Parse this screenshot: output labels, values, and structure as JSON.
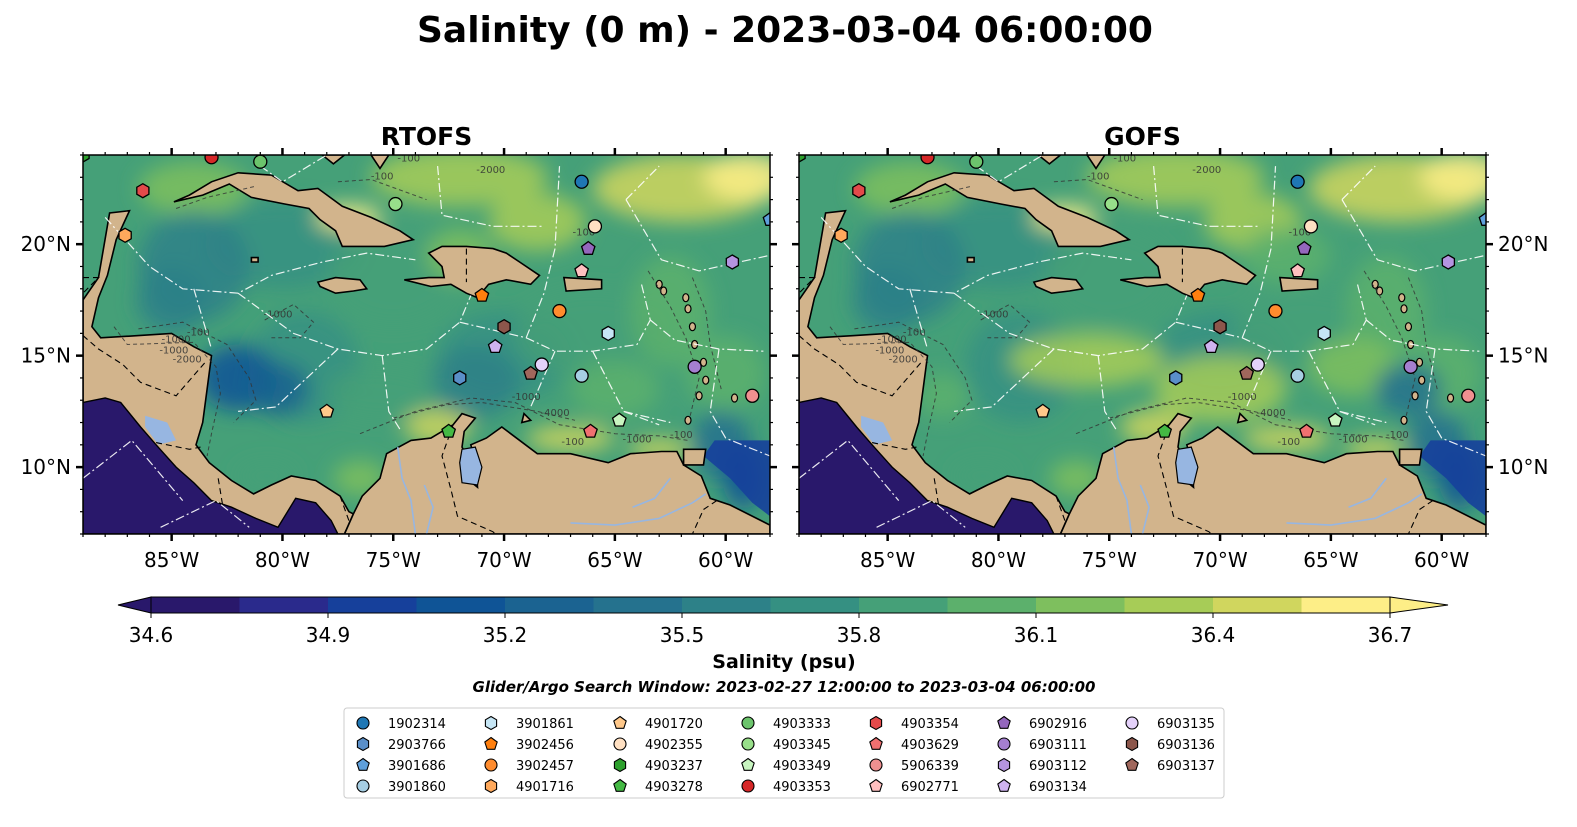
{
  "figure": {
    "title": "Salinity (0 m) - 2023-03-04 06:00:00",
    "search_window": "Glider/Argo Search Window: 2023-02-27 12:00:00 to 2023-03-04 06:00:00"
  },
  "colors": {
    "land": "#d2b48c",
    "lake": "#97b6e1",
    "marker_edge": "#000000"
  },
  "chart_data": {
    "type": "heatmap",
    "projection": "plate carree",
    "extent": {
      "lon": [
        -89,
        -58
      ],
      "lat": [
        7,
        24
      ]
    },
    "panels": [
      {
        "title": "RTOFS",
        "model": "RTOFS"
      },
      {
        "title": "GOFS",
        "model": "GOFS"
      }
    ],
    "x_ticks": [
      "85°W",
      "80°W",
      "75°W",
      "70°W",
      "65°W",
      "60°W"
    ],
    "x_tick_values": [
      -85,
      -80,
      -75,
      -70,
      -65,
      -60
    ],
    "y_ticks": [
      "10°N",
      "15°N",
      "20°N"
    ],
    "y_tick_values": [
      10,
      15,
      20
    ],
    "colorbar": {
      "label": "Salinity (psu)",
      "ticks": [
        "34.6",
        "34.9",
        "35.2",
        "35.5",
        "35.8",
        "36.1",
        "36.4",
        "36.7"
      ],
      "range": [
        34.6,
        36.7
      ],
      "extend": "both",
      "colormap": "haline",
      "colors": [
        "#29186b",
        "#2a2a8c",
        "#16409b",
        "#0f5496",
        "#1b6391",
        "#25728e",
        "#2d8188",
        "#359082",
        "#45a078",
        "#5cb06c",
        "#7ebf5e",
        "#a7cc57",
        "#d0d65e",
        "#fdee87"
      ]
    },
    "contour_labels": [
      "-100",
      "-1000",
      "-2000",
      "-4000",
      "-1000",
      "-1000",
      "-100",
      "-100",
      "-1000",
      "-100",
      "-2000",
      "-100",
      "-100",
      "-1000"
    ],
    "floats": [
      {
        "id": "1902314",
        "lon": -66.5,
        "lat": 22.8,
        "marker": "circle",
        "color": "#1f77b4"
      },
      {
        "id": "2903766",
        "lon": -72.0,
        "lat": 14.0,
        "marker": "hexagon",
        "color": "#5a8fc9"
      },
      {
        "id": "3901686",
        "lon": -58.0,
        "lat": 21.1,
        "marker": "pentagon",
        "color": "#5fa0dc"
      },
      {
        "id": "3901860",
        "lon": -66.5,
        "lat": 14.1,
        "marker": "circle",
        "color": "#a6cee3"
      },
      {
        "id": "3901861",
        "lon": -65.3,
        "lat": 16.0,
        "marker": "hexagon",
        "color": "#c6e6f5"
      },
      {
        "id": "3902456",
        "lon": -71.0,
        "lat": 17.7,
        "marker": "pentagon",
        "color": "#ff7f0e"
      },
      {
        "id": "3902457",
        "lon": -67.5,
        "lat": 17.0,
        "marker": "circle",
        "color": "#ff8c2e"
      },
      {
        "id": "4901716",
        "lon": -87.1,
        "lat": 20.4,
        "marker": "hexagon",
        "color": "#ffa95c"
      },
      {
        "id": "4901720",
        "lon": -78.0,
        "lat": 12.5,
        "marker": "pentagon",
        "color": "#ffc88a"
      },
      {
        "id": "4902355",
        "lon": -65.9,
        "lat": 20.8,
        "marker": "circle",
        "color": "#ffe0c2"
      },
      {
        "id": "4903237",
        "lon": -89.0,
        "lat": 24.0,
        "marker": "hexagon",
        "color": "#2ca02c"
      },
      {
        "id": "4903278",
        "lon": -72.5,
        "lat": 11.6,
        "marker": "pentagon",
        "color": "#44b944"
      },
      {
        "id": "4903333",
        "lon": -81.0,
        "lat": 23.7,
        "marker": "circle",
        "color": "#6cc46c"
      },
      {
        "id": "4903345",
        "lon": -74.9,
        "lat": 21.8,
        "marker": "circle",
        "color": "#98df8a"
      },
      {
        "id": "4903349",
        "lon": -64.8,
        "lat": 12.1,
        "marker": "pentagon",
        "color": "#c8f5c0"
      },
      {
        "id": "4903353",
        "lon": -83.2,
        "lat": 23.9,
        "marker": "circle",
        "color": "#d62728"
      },
      {
        "id": "4903354",
        "lon": -86.3,
        "lat": 22.4,
        "marker": "hexagon",
        "color": "#e34a4a"
      },
      {
        "id": "4903629",
        "lon": -66.1,
        "lat": 11.6,
        "marker": "pentagon",
        "color": "#f07070"
      },
      {
        "id": "5906339",
        "lon": -58.8,
        "lat": 13.2,
        "marker": "circle",
        "color": "#f09090"
      },
      {
        "id": "6902771",
        "lon": -66.5,
        "lat": 18.8,
        "marker": "pentagon",
        "color": "#ffc0c0"
      },
      {
        "id": "6902916",
        "lon": -66.2,
        "lat": 19.8,
        "marker": "pentagon",
        "color": "#9467bd"
      },
      {
        "id": "6903111",
        "lon": -61.4,
        "lat": 14.5,
        "marker": "circle",
        "color": "#a57fd0"
      },
      {
        "id": "6903112",
        "lon": -59.7,
        "lat": 19.2,
        "marker": "hexagon",
        "color": "#b494e0"
      },
      {
        "id": "6903134",
        "lon": -70.4,
        "lat": 15.4,
        "marker": "pentagon",
        "color": "#cfb3f0"
      },
      {
        "id": "6903135",
        "lon": -68.3,
        "lat": 14.6,
        "marker": "circle",
        "color": "#e4d1fa"
      },
      {
        "id": "6903136",
        "lon": -70.0,
        "lat": 16.3,
        "marker": "hexagon",
        "color": "#8c564b"
      },
      {
        "id": "6903137",
        "lon": -68.8,
        "lat": 14.2,
        "marker": "pentagon",
        "color": "#a0675c"
      }
    ]
  }
}
